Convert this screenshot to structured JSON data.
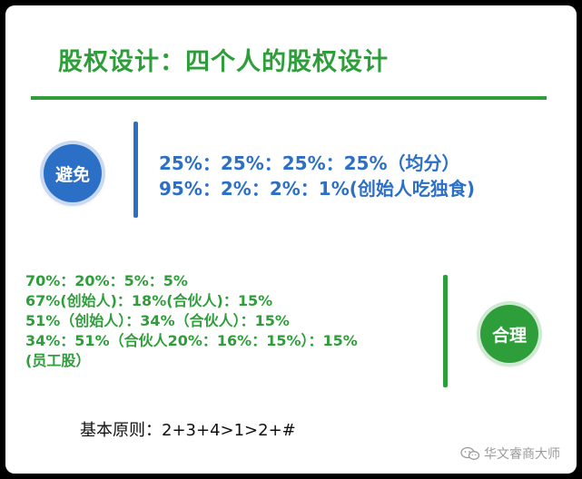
{
  "title": "股权设计：四个人的股权设计",
  "avoid": {
    "label": "避免",
    "lines": [
      "25%：25%：25%：25%（均分）",
      "95%：2%：2%：1%(创始人吃独食)"
    ]
  },
  "reasonable": {
    "label": "合理",
    "lines": [
      "70%：20%：5%：5%",
      "67%(创始人)：18%(合伙人)：15%",
      "51%（创始人）：34%（合伙人）：15%",
      "34%：51%（合伙人20%：16%：15%）：15%",
      "(员工股）"
    ]
  },
  "principle": "基本原则：2+3+4>1>2+#",
  "watermark": {
    "text": "华文睿商大师",
    "icon": "wechat-icon"
  },
  "colors": {
    "green": "#2e9e3a",
    "blue": "#2c6fc6",
    "background": "#000000",
    "card": "#ffffff"
  }
}
